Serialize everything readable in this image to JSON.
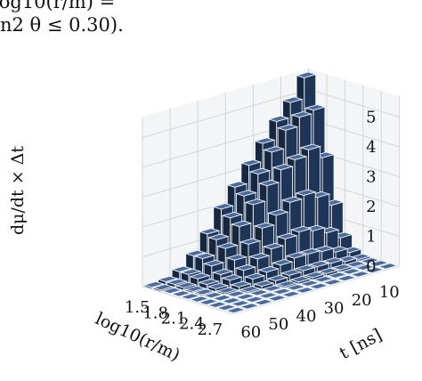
{
  "caption": {
    "line1": "log10(r/m) =",
    "line2": "n2 θ ≤ 0.30)."
  },
  "chart_data": {
    "type": "bar3d",
    "zlabel": "dμ/dt × Δt",
    "xlabel": "log10(r/m)",
    "ylabel": "t [ns]",
    "z_ticks": [
      "0",
      "1",
      "2",
      "3",
      "4",
      "5"
    ],
    "r_ticks": [
      "1.5",
      "1.8",
      "2.1",
      "2.4",
      "2.7"
    ],
    "t_ticks": [
      "10",
      "20",
      "30",
      "40",
      "50",
      "60"
    ],
    "zlim": [
      0,
      5.7
    ],
    "bar_color": "#1f3557",
    "t_values_ns": [
      5,
      10,
      15,
      20,
      25,
      30,
      35,
      40,
      45,
      50,
      55,
      60
    ],
    "r_values_log10": [
      1.425,
      1.575,
      1.725,
      1.875,
      2.025,
      2.175,
      2.325,
      2.475,
      2.625,
      2.775
    ],
    "values_by_r": [
      [
        5.6,
        4.9,
        4.4,
        3.8,
        3.2,
        2.6,
        2.0,
        1.3,
        0.7,
        0.3,
        0.1,
        0.05
      ],
      [
        4.6,
        4.5,
        4.2,
        3.6,
        3.0,
        2.4,
        1.8,
        1.2,
        0.7,
        0.3,
        0.1,
        0.05
      ],
      [
        3.1,
        3.5,
        3.3,
        3.1,
        2.7,
        2.2,
        1.6,
        1.0,
        0.55,
        0.25,
        0.08,
        0.03
      ],
      [
        1.6,
        2.0,
        2.2,
        2.1,
        1.8,
        1.5,
        1.1,
        0.7,
        0.35,
        0.15,
        0.05,
        0.02
      ],
      [
        0.6,
        0.9,
        1.1,
        1.2,
        1.1,
        0.9,
        0.7,
        0.45,
        0.25,
        0.1,
        0.04,
        0.01
      ],
      [
        0.2,
        0.35,
        0.5,
        0.55,
        0.55,
        0.45,
        0.35,
        0.25,
        0.12,
        0.05,
        0.02,
        0.01
      ],
      [
        0.06,
        0.12,
        0.2,
        0.22,
        0.22,
        0.2,
        0.15,
        0.1,
        0.05,
        0.02,
        0.01,
        0.0
      ],
      [
        0.02,
        0.04,
        0.07,
        0.08,
        0.08,
        0.07,
        0.05,
        0.03,
        0.02,
        0.01,
        0.0,
        0.0
      ],
      [
        0.01,
        0.01,
        0.02,
        0.03,
        0.03,
        0.02,
        0.02,
        0.01,
        0.0,
        0.0,
        0.0,
        0.0
      ],
      [
        0.0,
        0.0,
        0.01,
        0.01,
        0.01,
        0.01,
        0.0,
        0.0,
        0.0,
        0.0,
        0.0,
        0.0
      ]
    ]
  }
}
